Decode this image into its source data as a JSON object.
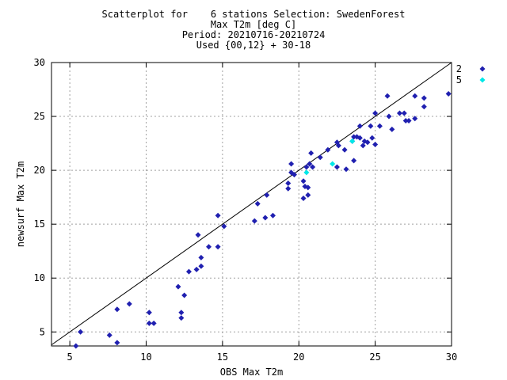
{
  "chart_data": {
    "type": "scatter",
    "title": "Scatterplot for    6 stations Selection: SwedenForest",
    "subtitle_lines": [
      "Max T2m [deg C]",
      "Period: 20210716-20210724",
      "Used {00,12} + 30-18"
    ],
    "xlabel": "OBS Max T2m",
    "ylabel": "newsurf Max T2m",
    "xlim": [
      3.8,
      30
    ],
    "ylim": [
      3.7,
      30
    ],
    "xticks": [
      5,
      10,
      15,
      20,
      25,
      30
    ],
    "yticks": [
      5,
      10,
      15,
      20,
      25,
      30
    ],
    "grid": true,
    "diagonal_line": true,
    "legend_position": "right",
    "series": [
      {
        "name": "2",
        "color": "#2020b0",
        "marker": "diamond",
        "points": [
          [
            5.4,
            3.7
          ],
          [
            5.7,
            5.0
          ],
          [
            7.6,
            4.7
          ],
          [
            8.1,
            4.0
          ],
          [
            8.1,
            7.1
          ],
          [
            8.9,
            7.6
          ],
          [
            10.2,
            6.8
          ],
          [
            10.2,
            5.8
          ],
          [
            10.5,
            5.8
          ],
          [
            12.1,
            9.2
          ],
          [
            12.3,
            6.8
          ],
          [
            12.3,
            6.3
          ],
          [
            12.5,
            8.4
          ],
          [
            12.8,
            10.6
          ],
          [
            13.3,
            10.8
          ],
          [
            13.4,
            14.0
          ],
          [
            13.6,
            11.1
          ],
          [
            13.6,
            11.9
          ],
          [
            14.1,
            12.9
          ],
          [
            14.7,
            12.9
          ],
          [
            14.7,
            15.8
          ],
          [
            15.1,
            14.8
          ],
          [
            17.1,
            15.3
          ],
          [
            17.3,
            16.9
          ],
          [
            17.8,
            15.6
          ],
          [
            17.9,
            17.7
          ],
          [
            18.3,
            15.8
          ],
          [
            19.3,
            18.3
          ],
          [
            19.3,
            18.8
          ],
          [
            19.5,
            20.6
          ],
          [
            19.5,
            19.8
          ],
          [
            19.7,
            19.6
          ],
          [
            20.3,
            17.4
          ],
          [
            20.3,
            19.0
          ],
          [
            20.4,
            18.5
          ],
          [
            20.5,
            20.3
          ],
          [
            20.6,
            18.4
          ],
          [
            20.6,
            17.7
          ],
          [
            20.7,
            20.6
          ],
          [
            20.8,
            21.6
          ],
          [
            20.9,
            20.3
          ],
          [
            21.4,
            21.2
          ],
          [
            21.9,
            21.9
          ],
          [
            22.5,
            22.6
          ],
          [
            22.5,
            20.3
          ],
          [
            22.6,
            22.3
          ],
          [
            23.0,
            21.9
          ],
          [
            23.1,
            20.1
          ],
          [
            23.5,
            22.7
          ],
          [
            23.6,
            20.9
          ],
          [
            23.6,
            23.1
          ],
          [
            23.8,
            23.1
          ],
          [
            24.0,
            24.1
          ],
          [
            24.0,
            23.0
          ],
          [
            24.2,
            22.3
          ],
          [
            24.3,
            22.7
          ],
          [
            24.5,
            22.6
          ],
          [
            24.7,
            24.1
          ],
          [
            24.8,
            23.0
          ],
          [
            25.0,
            25.3
          ],
          [
            25.0,
            22.4
          ],
          [
            25.3,
            24.1
          ],
          [
            25.8,
            26.9
          ],
          [
            25.9,
            25.0
          ],
          [
            26.1,
            23.8
          ],
          [
            26.6,
            25.3
          ],
          [
            26.9,
            25.3
          ],
          [
            27.0,
            24.6
          ],
          [
            27.2,
            24.6
          ],
          [
            27.6,
            26.9
          ],
          [
            27.6,
            24.8
          ],
          [
            28.2,
            26.7
          ],
          [
            28.2,
            25.9
          ],
          [
            29.8,
            27.1
          ]
        ]
      },
      {
        "name": "5",
        "color": "#00e8e8",
        "marker": "diamond",
        "points": [
          [
            20.5,
            19.8
          ],
          [
            22.2,
            20.6
          ],
          [
            23.5,
            22.7
          ]
        ]
      }
    ]
  }
}
